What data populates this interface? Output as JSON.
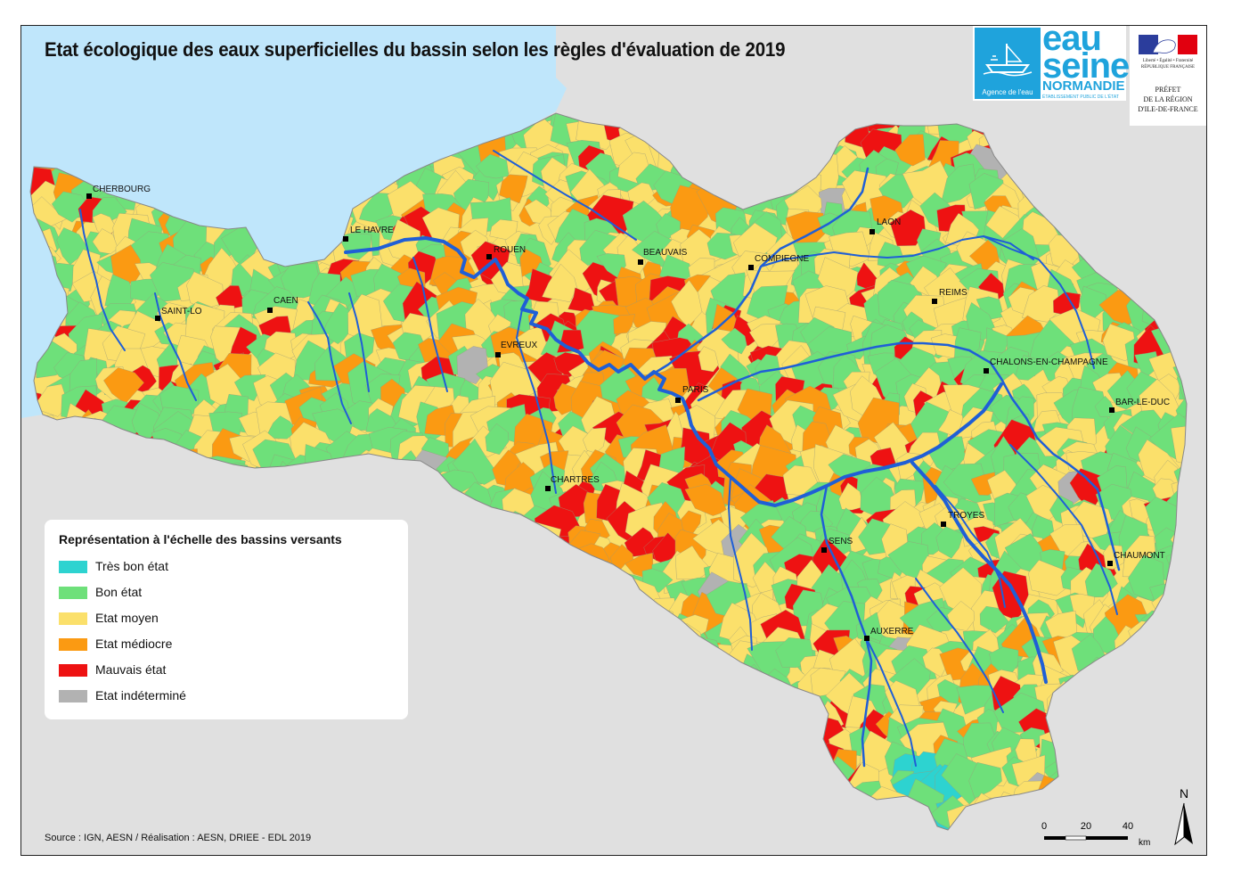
{
  "title": "Etat écologique des eaux superficielles du bassin selon les règles d'évaluation de 2019",
  "logos": {
    "eau_word1": "eau",
    "eau_word2": "seine",
    "eau_word3": "NORMANDIE",
    "eau_small": "ÉTABLISSEMENT PUBLIC DE L'ÉTAT",
    "agence": "Agence de l'eau",
    "rf_small": "Liberté • Égalité • Fraternité RÉPUBLIQUE FRANÇAISE",
    "prefet_lines": [
      "PRÉFET",
      "DE LA RÉGION",
      "D'ILE-DE-FRANCE"
    ]
  },
  "cities": [
    {
      "name": "CHERBOURG"
    },
    {
      "name": "LE HAVRE"
    },
    {
      "name": "ROUEN"
    },
    {
      "name": "BEAUVAIS"
    },
    {
      "name": "COMPIEGNE"
    },
    {
      "name": "LAON"
    },
    {
      "name": "REIMS"
    },
    {
      "name": "SAINT-LO"
    },
    {
      "name": "CAEN"
    },
    {
      "name": "EVREUX"
    },
    {
      "name": "PARIS"
    },
    {
      "name": "CHALONS-EN-CHAMPAGNE"
    },
    {
      "name": "BAR-LE-DUC"
    },
    {
      "name": "CHARTRES"
    },
    {
      "name": "TROYES"
    },
    {
      "name": "SENS"
    },
    {
      "name": "CHAUMONT"
    },
    {
      "name": "AUXERRE"
    }
  ],
  "legend": {
    "title": "Représentation à l'échelle des bassins versants",
    "items": [
      {
        "label": "Très bon état",
        "color": "#2dd3d0"
      },
      {
        "label": "Bon état",
        "color": "#6ee07a"
      },
      {
        "label": "Etat moyen",
        "color": "#fbe06b"
      },
      {
        "label": "Etat médiocre",
        "color": "#fb9a12"
      },
      {
        "label": "Mauvais état",
        "color": "#ee1212"
      },
      {
        "label": "Etat indéterminé",
        "color": "#b2b2b2"
      }
    ]
  },
  "source": "Source : IGN, AESN / Réalisation : AESN, DRIEE - EDL 2019",
  "scale": {
    "ticks": [
      "0",
      "20",
      "40"
    ],
    "unit": "km"
  },
  "north": "N",
  "colors": {
    "sea": "#bfe6fb",
    "land_outside": "#e0e0e0",
    "river": "#1f5fd6"
  }
}
